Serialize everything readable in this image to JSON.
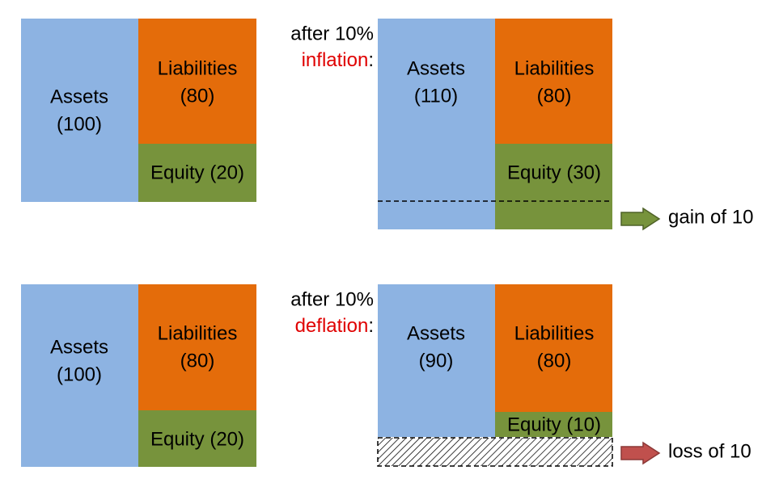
{
  "top_left": {
    "assets": [
      "Assets",
      "(100)"
    ],
    "liabilities": [
      "Liabilities",
      "(80)"
    ],
    "equity": "Equity (20)"
  },
  "top_right": {
    "caption": "after 10%",
    "caption_word": "inflation",
    "caption_colon": ":",
    "assets": [
      "Assets",
      "(110)"
    ],
    "liabilities": [
      "Liabilities",
      "(80)"
    ],
    "equity": "Equity (30)",
    "result": "gain of 10"
  },
  "bottom_left": {
    "assets": [
      "Assets",
      "(100)"
    ],
    "liabilities": [
      "Liabilities",
      "(80)"
    ],
    "equity": "Equity (20)"
  },
  "bottom_right": {
    "caption": "after 10%",
    "caption_word": "deflation",
    "caption_colon": ":",
    "assets": [
      "Assets",
      "(90)"
    ],
    "liabilities": [
      "Liabilities",
      "(80)"
    ],
    "equity": "Equity (10)",
    "result": "loss of 10"
  }
}
